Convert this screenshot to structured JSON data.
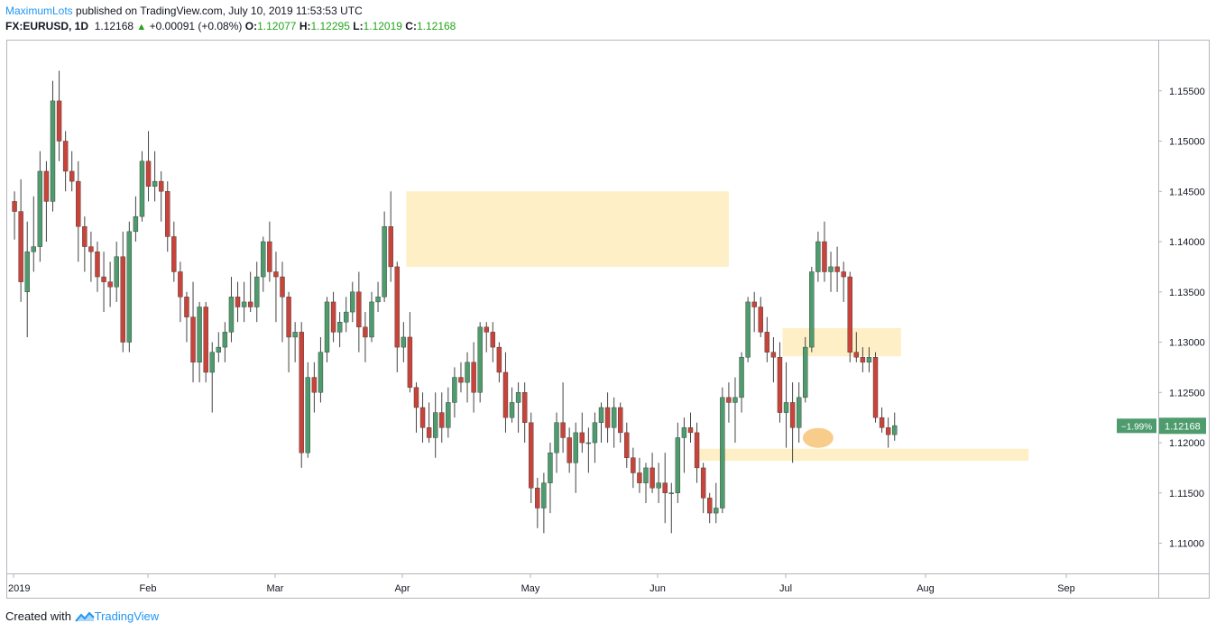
{
  "header": {
    "author": "MaximumLots",
    "published_text": " published on TradingView.com, July 10, 2019 11:53:53 UTC",
    "symbol": "FX:EURUSD, 1D",
    "last": "1.12168",
    "change_arrow": "▲",
    "change": "+0.00091 (+0.08%)",
    "o_label": "O:",
    "o_value": "1.12077",
    "h_label": "H:",
    "h_value": "1.12295",
    "l_label": "L:",
    "l_value": "1.12019",
    "c_label": "C:",
    "c_value": "1.12168"
  },
  "footer": {
    "created_with": "Created with",
    "brand": "TradingView",
    "logo_icon": "tradingview-logo-icon"
  },
  "price_tag": {
    "percent": "−1.99%",
    "price": "1.12168"
  },
  "colors": {
    "up": "#4e9b6d",
    "down": "#c8443a",
    "zone": "#fde9b4",
    "highlight": "#f5b65a",
    "tag": "#4e9b6d"
  },
  "chart_data": {
    "type": "candlestick",
    "symbol": "FX:EURUSD",
    "interval": "1D",
    "ylim": [
      1.108,
      1.159
    ],
    "y_ticks": [
      "1.15500",
      "1.15000",
      "1.14500",
      "1.14000",
      "1.13500",
      "1.13000",
      "1.12500",
      "1.12000",
      "1.11500",
      "1.11000"
    ],
    "x_ticks": [
      {
        "label": "2019",
        "day": 1
      },
      {
        "label": "Feb",
        "day": 22
      },
      {
        "label": "Mar",
        "day": 42
      },
      {
        "label": "Apr",
        "day": 62
      },
      {
        "label": "May",
        "day": 82
      },
      {
        "label": "Jun",
        "day": 102
      },
      {
        "label": "Jul",
        "day": 122
      },
      {
        "label": "Aug",
        "day": 144
      },
      {
        "label": "Sep",
        "day": 166
      }
    ],
    "candles": [
      [
        1.144,
        1.145,
        1.1402,
        1.143
      ],
      [
        1.143,
        1.1462,
        1.134,
        1.136
      ],
      [
        1.135,
        1.142,
        1.1305,
        1.139
      ],
      [
        1.139,
        1.1445,
        1.137,
        1.1395
      ],
      [
        1.1395,
        1.149,
        1.138,
        1.147
      ],
      [
        1.147,
        1.148,
        1.14,
        1.144
      ],
      [
        1.144,
        1.156,
        1.143,
        1.154
      ],
      [
        1.154,
        1.157,
        1.148,
        1.15
      ],
      [
        1.15,
        1.151,
        1.145,
        1.147
      ],
      [
        1.147,
        1.149,
        1.145,
        1.146
      ],
      [
        1.146,
        1.148,
        1.138,
        1.1415
      ],
      [
        1.1415,
        1.1425,
        1.137,
        1.1395
      ],
      [
        1.1395,
        1.141,
        1.136,
        1.139
      ],
      [
        1.139,
        1.14,
        1.135,
        1.1365
      ],
      [
        1.1365,
        1.139,
        1.133,
        1.136
      ],
      [
        1.136,
        1.138,
        1.1335,
        1.1355
      ],
      [
        1.1355,
        1.14,
        1.134,
        1.1385
      ],
      [
        1.1385,
        1.141,
        1.129,
        1.13
      ],
      [
        1.13,
        1.142,
        1.129,
        1.141
      ],
      [
        1.141,
        1.1445,
        1.14,
        1.1425
      ],
      [
        1.1425,
        1.149,
        1.142,
        1.148
      ],
      [
        1.148,
        1.151,
        1.144,
        1.1455
      ],
      [
        1.1455,
        1.149,
        1.144,
        1.146
      ],
      [
        1.146,
        1.147,
        1.142,
        1.145
      ],
      [
        1.145,
        1.146,
        1.139,
        1.1405
      ],
      [
        1.1405,
        1.142,
        1.136,
        1.137
      ],
      [
        1.137,
        1.138,
        1.132,
        1.1345
      ],
      [
        1.1345,
        1.135,
        1.13,
        1.1325
      ],
      [
        1.1325,
        1.136,
        1.126,
        1.128
      ],
      [
        1.128,
        1.134,
        1.126,
        1.1335
      ],
      [
        1.1335,
        1.134,
        1.126,
        1.127
      ],
      [
        1.127,
        1.13,
        1.123,
        1.129
      ],
      [
        1.129,
        1.131,
        1.128,
        1.1295
      ],
      [
        1.1295,
        1.132,
        1.128,
        1.131
      ],
      [
        1.131,
        1.1365,
        1.13,
        1.1345
      ],
      [
        1.1345,
        1.136,
        1.132,
        1.1335
      ],
      [
        1.1335,
        1.136,
        1.132,
        1.134
      ],
      [
        1.134,
        1.137,
        1.133,
        1.1335
      ],
      [
        1.1335,
        1.138,
        1.132,
        1.1365
      ],
      [
        1.1365,
        1.1405,
        1.135,
        1.14
      ],
      [
        1.14,
        1.142,
        1.136,
        1.137
      ],
      [
        1.137,
        1.139,
        1.132,
        1.1365
      ],
      [
        1.1365,
        1.138,
        1.13,
        1.1345
      ],
      [
        1.1345,
        1.135,
        1.127,
        1.1305
      ],
      [
        1.1305,
        1.132,
        1.128,
        1.131
      ],
      [
        1.131,
        1.132,
        1.1175,
        1.119
      ],
      [
        1.119,
        1.128,
        1.1185,
        1.1265
      ],
      [
        1.1265,
        1.128,
        1.123,
        1.125
      ],
      [
        1.125,
        1.1305,
        1.124,
        1.129
      ],
      [
        1.129,
        1.1345,
        1.128,
        1.134
      ],
      [
        1.134,
        1.135,
        1.13,
        1.131
      ],
      [
        1.131,
        1.133,
        1.1295,
        1.132
      ],
      [
        1.132,
        1.1345,
        1.131,
        1.133
      ],
      [
        1.133,
        1.136,
        1.132,
        1.135
      ],
      [
        1.135,
        1.137,
        1.129,
        1.1315
      ],
      [
        1.1315,
        1.133,
        1.128,
        1.1305
      ],
      [
        1.1305,
        1.135,
        1.13,
        1.134
      ],
      [
        1.134,
        1.136,
        1.133,
        1.1345
      ],
      [
        1.1345,
        1.143,
        1.134,
        1.1415
      ],
      [
        1.1415,
        1.145,
        1.136,
        1.1375
      ],
      [
        1.1375,
        1.138,
        1.127,
        1.1295
      ],
      [
        1.1295,
        1.132,
        1.128,
        1.1305
      ],
      [
        1.1305,
        1.133,
        1.125,
        1.1255
      ],
      [
        1.1255,
        1.126,
        1.121,
        1.1235
      ],
      [
        1.1235,
        1.125,
        1.12,
        1.1215
      ],
      [
        1.1215,
        1.124,
        1.12,
        1.1205
      ],
      [
        1.1205,
        1.125,
        1.1185,
        1.123
      ],
      [
        1.123,
        1.125,
        1.12,
        1.1215
      ],
      [
        1.1215,
        1.1255,
        1.1205,
        1.124
      ],
      [
        1.124,
        1.1275,
        1.1225,
        1.1265
      ],
      [
        1.1265,
        1.128,
        1.125,
        1.126
      ],
      [
        1.126,
        1.129,
        1.124,
        1.128
      ],
      [
        1.128,
        1.13,
        1.123,
        1.125
      ],
      [
        1.125,
        1.132,
        1.124,
        1.1315
      ],
      [
        1.1315,
        1.132,
        1.129,
        1.131
      ],
      [
        1.131,
        1.132,
        1.128,
        1.1295
      ],
      [
        1.1295,
        1.13,
        1.126,
        1.127
      ],
      [
        1.127,
        1.129,
        1.121,
        1.1225
      ],
      [
        1.1225,
        1.1255,
        1.122,
        1.124
      ],
      [
        1.124,
        1.126,
        1.121,
        1.125
      ],
      [
        1.125,
        1.126,
        1.12,
        1.122
      ],
      [
        1.122,
        1.123,
        1.114,
        1.1155
      ],
      [
        1.1155,
        1.1165,
        1.1115,
        1.1135
      ],
      [
        1.1135,
        1.117,
        1.111,
        1.116
      ],
      [
        1.116,
        1.12,
        1.113,
        1.119
      ],
      [
        1.119,
        1.123,
        1.117,
        1.122
      ],
      [
        1.122,
        1.126,
        1.119,
        1.1205
      ],
      [
        1.1205,
        1.1215,
        1.117,
        1.118
      ],
      [
        1.118,
        1.122,
        1.115,
        1.121
      ],
      [
        1.121,
        1.123,
        1.119,
        1.12
      ],
      [
        1.12,
        1.1215,
        1.117,
        1.12
      ],
      [
        1.12,
        1.123,
        1.118,
        1.122
      ],
      [
        1.122,
        1.124,
        1.12,
        1.1235
      ],
      [
        1.1235,
        1.125,
        1.12,
        1.1215
      ],
      [
        1.1215,
        1.1245,
        1.1195,
        1.1235
      ],
      [
        1.1235,
        1.124,
        1.12,
        1.121
      ],
      [
        1.121,
        1.122,
        1.1175,
        1.1185
      ],
      [
        1.1185,
        1.1195,
        1.1155,
        1.117
      ],
      [
        1.117,
        1.1185,
        1.115,
        1.116
      ],
      [
        1.116,
        1.118,
        1.114,
        1.1175
      ],
      [
        1.1175,
        1.119,
        1.115,
        1.1155
      ],
      [
        1.1155,
        1.118,
        1.114,
        1.116
      ],
      [
        1.116,
        1.119,
        1.112,
        1.115
      ],
      [
        1.115,
        1.116,
        1.111,
        1.115
      ],
      [
        1.115,
        1.122,
        1.114,
        1.1205
      ],
      [
        1.1205,
        1.1225,
        1.117,
        1.1215
      ],
      [
        1.1215,
        1.123,
        1.12,
        1.121
      ],
      [
        1.121,
        1.122,
        1.116,
        1.1175
      ],
      [
        1.1175,
        1.118,
        1.113,
        1.1145
      ],
      [
        1.1145,
        1.115,
        1.112,
        1.113
      ],
      [
        1.113,
        1.116,
        1.112,
        1.1135
      ],
      [
        1.1135,
        1.1255,
        1.113,
        1.1245
      ],
      [
        1.1245,
        1.126,
        1.122,
        1.124
      ],
      [
        1.124,
        1.1265,
        1.12,
        1.1245
      ],
      [
        1.1245,
        1.129,
        1.123,
        1.1285
      ],
      [
        1.1285,
        1.1345,
        1.128,
        1.134
      ],
      [
        1.134,
        1.135,
        1.131,
        1.1335
      ],
      [
        1.1335,
        1.1345,
        1.1305,
        1.131
      ],
      [
        1.131,
        1.1325,
        1.128,
        1.129
      ],
      [
        1.129,
        1.1305,
        1.126,
        1.1285
      ],
      [
        1.1285,
        1.13,
        1.122,
        1.123
      ],
      [
        1.123,
        1.128,
        1.1195,
        1.124
      ],
      [
        1.124,
        1.126,
        1.118,
        1.1215
      ],
      [
        1.1215,
        1.126,
        1.12,
        1.1245
      ],
      [
        1.1245,
        1.1305,
        1.124,
        1.1295
      ],
      [
        1.1295,
        1.1375,
        1.129,
        1.137
      ],
      [
        1.137,
        1.141,
        1.136,
        1.14
      ],
      [
        1.14,
        1.142,
        1.136,
        1.137
      ],
      [
        1.137,
        1.139,
        1.135,
        1.1375
      ],
      [
        1.1375,
        1.1395,
        1.135,
        1.137
      ],
      [
        1.137,
        1.138,
        1.134,
        1.1365
      ],
      [
        1.1365,
        1.137,
        1.128,
        1.129
      ],
      [
        1.129,
        1.131,
        1.128,
        1.1285
      ],
      [
        1.1285,
        1.1295,
        1.127,
        1.128
      ],
      [
        1.128,
        1.1295,
        1.127,
        1.1285
      ],
      [
        1.1285,
        1.129,
        1.122,
        1.1225
      ],
      [
        1.1225,
        1.1235,
        1.121,
        1.1215
      ],
      [
        1.1215,
        1.1225,
        1.1195,
        1.1208
      ],
      [
        1.1208,
        1.123,
        1.1202,
        1.1217
      ]
    ],
    "annotations": [
      {
        "type": "zone",
        "price_top": 1.145,
        "price_bottom": 1.1375,
        "day_start": 63,
        "day_end": 113
      },
      {
        "type": "zone",
        "price_top": 1.1314,
        "price_bottom": 1.1286,
        "day_start": 122,
        "day_end": 140
      },
      {
        "type": "zone",
        "price_top": 1.1194,
        "price_bottom": 1.1182,
        "day_start": 109,
        "day_end": 160
      },
      {
        "type": "ellipse",
        "price": 1.1203,
        "day": 127
      }
    ]
  }
}
